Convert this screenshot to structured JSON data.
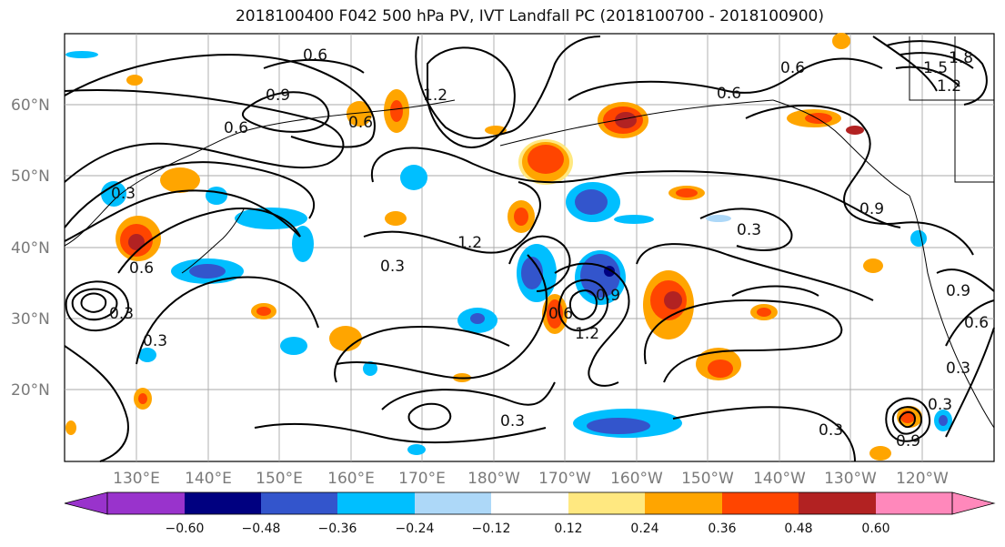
{
  "title": "2018100400 F042 500 hPa PV, IVT Landfall PC (2018100700 - 2018100900)",
  "lat_labels": [
    "60°N",
    "50°N",
    "40°N",
    "30°N",
    "20°N"
  ],
  "lon_labels": [
    "130°E",
    "140°E",
    "150°E",
    "160°E",
    "170°E",
    "180°W",
    "170°W",
    "160°W",
    "150°W",
    "140°W",
    "130°W",
    "120°W"
  ],
  "colorbar": {
    "tick_labels": [
      "−0.60",
      "−0.48",
      "−0.36",
      "−0.24",
      "−0.12",
      "0.12",
      "0.24",
      "0.36",
      "0.48",
      "0.60"
    ],
    "colors": [
      "#9933cc",
      "#000080",
      "#3355cc",
      "#00bfff",
      "#add8f8",
      "#ffffff",
      "#ffe880",
      "#ffa500",
      "#ff4500",
      "#b22222",
      "#ff88bb"
    ]
  },
  "contour_labels": [
    "0.6",
    "0.9",
    "1.2",
    "0.6",
    "0.6",
    "0.6",
    "1.8",
    "1.5",
    "1.2",
    "0.6",
    "0.3",
    "1.2",
    "0.3",
    "0.9",
    "0.3",
    "0.3",
    "0.6",
    "0.9",
    "1.2",
    "0.3",
    "0.9",
    "0.3",
    "0.6",
    "0.3",
    "0.9",
    "0.6",
    "0.3",
    "0.3"
  ],
  "legend": {
    "colors": {
      "purple": "#9933cc",
      "navy": "#000080",
      "mid_blue": "#3355cc",
      "cyan": "#00bfff",
      "light_blue": "#add8f8",
      "yellow": "#ffe880",
      "orange": "#ffa500",
      "orange_red": "#ff4500",
      "dark_red": "#b22222",
      "pink": "#ff88bb"
    }
  }
}
